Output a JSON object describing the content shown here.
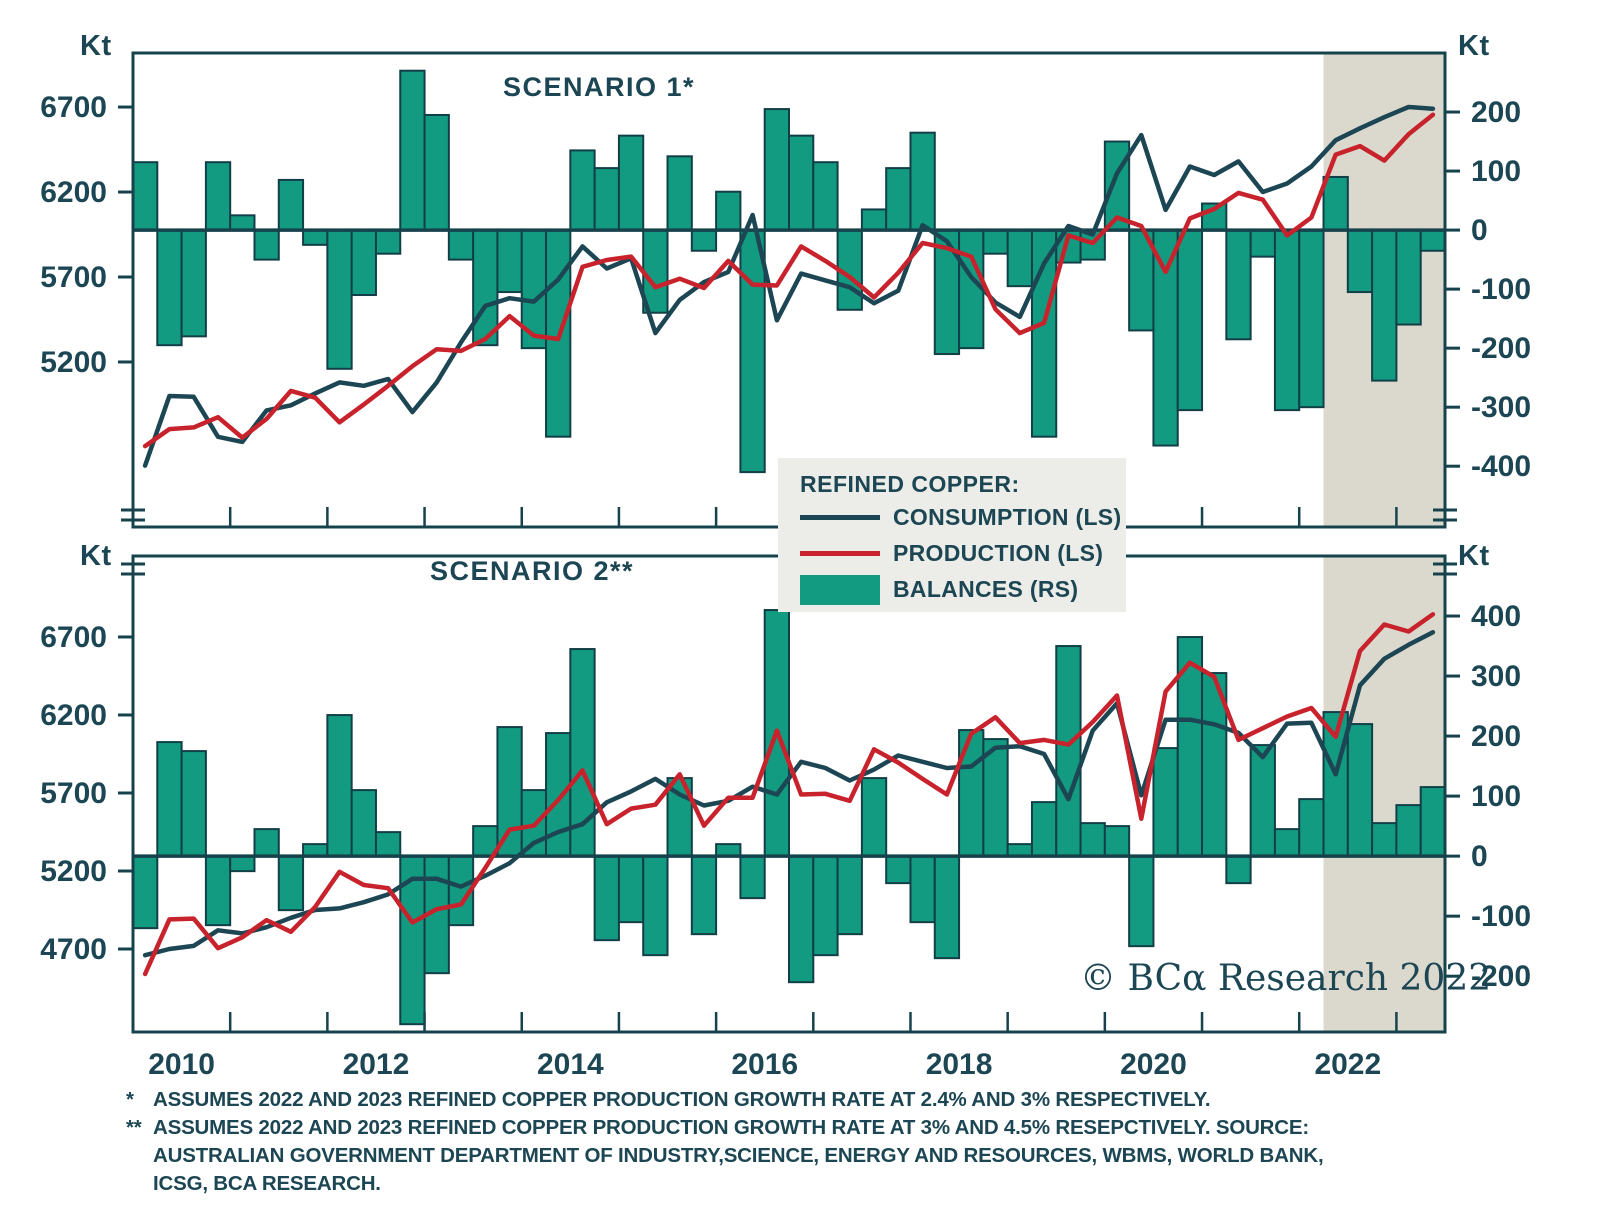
{
  "watermark": "© BCα Research 2022",
  "axis_unit": "Kt",
  "legend": {
    "title": "REFINED COPPER:",
    "items": [
      {
        "label": "CONSUMPTION (LS)",
        "marker": "line",
        "color": "#1C4653"
      },
      {
        "label": "PRODUCTION (LS)",
        "marker": "line",
        "color": "#C8232C"
      },
      {
        "label": "BALANCES (RS)",
        "marker": "swatch",
        "color": "#129B80"
      }
    ]
  },
  "footnotes": [
    {
      "marker": "*",
      "text": "ASSUMES 2022 AND 2023 REFINED COPPER PRODUCTION GROWTH RATE AT 2.4% AND 3% RESPECTIVELY."
    },
    {
      "marker": "**",
      "text": "ASSUMES 2022 AND 2023 REFINED COPPER PRODUCTION GROWTH RATE AT 3% AND 4.5% RESEPCTIVELY. SOURCE: AUSTRALIAN GOVERNMENT DEPARTMENT OF INDUSTRY,SCIENCE, ENERGY AND RESOURCES, WBMS, WORLD BANK, ICSG, BCA RESEARCH."
    }
  ],
  "colors": {
    "frame": "#16434B",
    "bar_fill": "#129B80",
    "bar_stroke": "#123F47",
    "consumption": "#1C4653",
    "production": "#C8232C",
    "forecast_shading": "#DBD9CE",
    "text": "#1C4653",
    "legend_bg": "#ECECE8"
  },
  "chart_data": [
    {
      "type": "bar+line",
      "title": "SCENARIO 1*",
      "unit": "Kt",
      "x_frequency": "quarterly",
      "x_range": "2010Q1-2023Q2",
      "n_points": 54,
      "x_year_labels": [
        "2010",
        "2012",
        "2014",
        "2016",
        "2018",
        "2020",
        "2022"
      ],
      "forecast_shading_start": "2022Q2",
      "forecast_start_index": 49,
      "left_axis": {
        "label": "Kt",
        "ticks": [
          6700,
          6200,
          5700,
          5200
        ],
        "range": [
          4229,
          7018
        ]
      },
      "right_axis": {
        "label": "Kt",
        "ticks": [
          200,
          100,
          0,
          -100,
          -200,
          -300,
          -400
        ],
        "range": [
          -503,
          300
        ]
      },
      "series": [
        {
          "name": "BALANCES (RS)",
          "type": "bar",
          "axis": "right",
          "color": "#129B80",
          "values": [
            115,
            -195,
            -180,
            115,
            25,
            -50,
            85,
            -25,
            -235,
            -110,
            -40,
            270,
            195,
            -50,
            -195,
            -105,
            -200,
            -350,
            135,
            105,
            160,
            -140,
            125,
            -35,
            65,
            -410,
            205,
            160,
            115,
            -135,
            35,
            105,
            165,
            -210,
            -200,
            -40,
            -95,
            -350,
            -55,
            -50,
            150,
            -170,
            -365,
            -305,
            45,
            -185,
            -45,
            -305,
            -300,
            90,
            -105,
            -255,
            -160,
            -35
          ]
        },
        {
          "name": "CONSUMPTION (LS)",
          "type": "line",
          "axis": "left",
          "color": "#1C4653",
          "values": [
            4590,
            5000,
            4995,
            4760,
            4730,
            4915,
            4945,
            5015,
            5080,
            5060,
            5100,
            4905,
            5080,
            5315,
            5530,
            5575,
            5555,
            5685,
            5880,
            5750,
            5810,
            5370,
            5565,
            5670,
            5730,
            6065,
            5445,
            5720,
            5680,
            5640,
            5545,
            5620,
            6005,
            5910,
            5700,
            5550,
            5465,
            5780,
            6000,
            5950,
            6310,
            6535,
            6095,
            6350,
            6300,
            6380,
            6200,
            6250,
            6350,
            6505,
            6575,
            6640,
            6700,
            6690
          ]
        },
        {
          "name": "PRODUCTION (LS)",
          "type": "line",
          "axis": "left",
          "color": "#C8232C",
          "values": [
            4705,
            4805,
            4815,
            4875,
            4755,
            4865,
            5030,
            4990,
            4845,
            4950,
            5060,
            5175,
            5275,
            5265,
            5335,
            5470,
            5355,
            5335,
            5760,
            5800,
            5820,
            5640,
            5690,
            5635,
            5795,
            5655,
            5650,
            5880,
            5795,
            5700,
            5580,
            5725,
            5900,
            5870,
            5820,
            5510,
            5370,
            5430,
            5945,
            5900,
            6050,
            6000,
            5730,
            6045,
            6100,
            6195,
            6155,
            5945,
            6050,
            6420,
            6470,
            6385,
            6540,
            6655
          ]
        }
      ]
    },
    {
      "type": "bar+line",
      "title": "SCENARIO 2**",
      "unit": "Kt",
      "x_frequency": "quarterly",
      "x_range": "2010Q1-2023Q2",
      "n_points": 54,
      "x_year_labels": [
        "2010",
        "2012",
        "2014",
        "2016",
        "2018",
        "2020",
        "2022"
      ],
      "forecast_shading_start": "2022Q2",
      "forecast_start_index": 49,
      "left_axis": {
        "label": "Kt",
        "ticks": [
          6700,
          6200,
          5700,
          5200,
          4700
        ],
        "range": [
          4168,
          7219
        ]
      },
      "right_axis": {
        "label": "Kt",
        "ticks": [
          400,
          300,
          200,
          100,
          0,
          -100,
          -200
        ],
        "range": [
          -293,
          500
        ]
      },
      "series": [
        {
          "name": "BALANCES (RS)",
          "type": "bar",
          "axis": "right",
          "color": "#129B80",
          "values": [
            -120,
            190,
            175,
            -115,
            -25,
            45,
            -90,
            20,
            235,
            110,
            40,
            -280,
            -195,
            -115,
            50,
            215,
            110,
            205,
            345,
            -140,
            -110,
            -165,
            130,
            -130,
            20,
            -70,
            410,
            -210,
            -165,
            -130,
            130,
            -45,
            -110,
            -170,
            210,
            195,
            20,
            90,
            350,
            55,
            50,
            -150,
            180,
            365,
            305,
            -45,
            185,
            45,
            95,
            240,
            220,
            55,
            85,
            115
          ]
        },
        {
          "name": "CONSUMPTION (LS)",
          "type": "line",
          "axis": "left",
          "color": "#1C4653",
          "values": [
            4660,
            4700,
            4720,
            4820,
            4800,
            4840,
            4900,
            4950,
            4960,
            5000,
            5050,
            5150,
            5150,
            5100,
            5170,
            5250,
            5380,
            5450,
            5500,
            5640,
            5710,
            5790,
            5690,
            5620,
            5650,
            5740,
            5690,
            5900,
            5860,
            5780,
            5850,
            5940,
            5900,
            5860,
            5870,
            5990,
            6000,
            5950,
            5660,
            6100,
            6275,
            5685,
            6170,
            6170,
            6140,
            6085,
            5930,
            6145,
            6150,
            5820,
            6390,
            6560,
            6650,
            6730
          ]
        },
        {
          "name": "PRODUCTION (LS)",
          "type": "line",
          "axis": "left",
          "color": "#C8232C",
          "values": [
            4540,
            4890,
            4895,
            4705,
            4775,
            4885,
            4810,
            4970,
            5195,
            5110,
            5090,
            4870,
            4955,
            4985,
            5220,
            5465,
            5490,
            5655,
            5845,
            5500,
            5600,
            5625,
            5820,
            5490,
            5670,
            5670,
            6100,
            5690,
            5695,
            5650,
            5980,
            5895,
            5790,
            5690,
            6080,
            6185,
            6020,
            6040,
            6010,
            6155,
            6325,
            5535,
            6350,
            6535,
            6445,
            6040,
            6115,
            6190,
            6245,
            6060,
            6610,
            6780,
            6735,
            6845
          ]
        }
      ]
    }
  ]
}
